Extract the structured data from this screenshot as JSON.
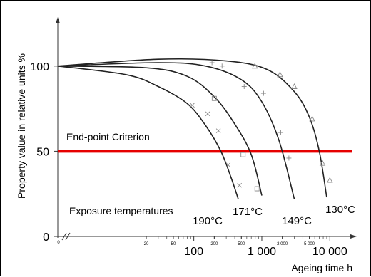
{
  "chart_data": {
    "type": "line",
    "xscale": "log",
    "xlim": [
      1,
      20000
    ],
    "ylim": [
      0,
      125
    ],
    "xlabel": "Ageing time  h",
    "ylabel": "Property value in relative units  %",
    "y_ticks": [
      {
        "value": 0,
        "label": "0"
      },
      {
        "value": 50,
        "label": "50"
      },
      {
        "value": 100,
        "label": "100"
      }
    ],
    "x_ticks_major": [
      {
        "value": 100,
        "label": "100"
      },
      {
        "value": 1000,
        "label": "1 000"
      },
      {
        "value": 10000,
        "label": "10 000"
      }
    ],
    "x_ticks_minor": [
      {
        "value": 20,
        "label": "20"
      },
      {
        "value": 50,
        "label": "50"
      },
      {
        "value": 200,
        "label": "200"
      },
      {
        "value": 500,
        "label": "500"
      },
      {
        "value": 2000,
        "label": "2 000"
      },
      {
        "value": 5000,
        "label": "5 000"
      }
    ],
    "threshold": {
      "value": 50,
      "label": "End-point Criterion",
      "color": "#e60000"
    },
    "annotation": "Exposure temperatures",
    "series": [
      {
        "name": "190°C",
        "marker": "x",
        "x": [
          1,
          10,
          30,
          80,
          150,
          250,
          350,
          450
        ],
        "y": [
          100,
          95,
          88,
          78,
          65,
          50,
          35,
          22
        ],
        "points": {
          "x": [
            95,
            160,
            230,
            320,
            470
          ],
          "y": [
            77,
            72,
            62,
            42,
            30
          ]
        }
      },
      {
        "name": "171°C",
        "marker": "square",
        "x": [
          1,
          20,
          80,
          200,
          400,
          700,
          1000
        ],
        "y": [
          100,
          99,
          94,
          82,
          66,
          48,
          24
        ],
        "points": {
          "x": [
            200,
            530,
            850
          ],
          "y": [
            81,
            48,
            28
          ]
        }
      },
      {
        "name": "149°C",
        "marker": "plus",
        "x": [
          1,
          30,
          150,
          500,
          1000,
          1800,
          3000
        ],
        "y": [
          100,
          102,
          100,
          92,
          79,
          56,
          22
        ],
        "points": {
          "x": [
            185,
            260,
            550,
            1060,
            1900,
            2500
          ],
          "y": [
            102,
            100,
            88,
            84,
            61,
            46
          ]
        }
      },
      {
        "name": "130°C",
        "marker": "triangle",
        "x": [
          1,
          30,
          300,
          1200,
          3000,
          5000,
          7000,
          9000
        ],
        "y": [
          100,
          104,
          103,
          98,
          85,
          70,
          50,
          23
        ],
        "points": {
          "x": [
            790,
            1850,
            3000,
            5500,
            7800,
            10000
          ],
          "y": [
            100,
            95,
            88,
            69,
            43,
            33
          ]
        }
      }
    ]
  }
}
